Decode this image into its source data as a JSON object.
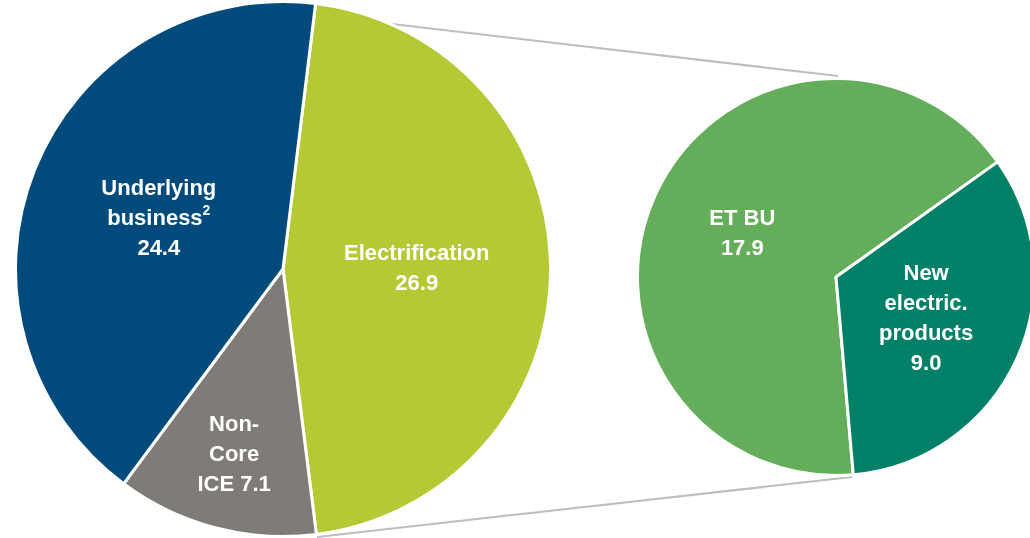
{
  "chart_data": [
    {
      "type": "pie",
      "categories": [
        "Electrification",
        "Non-Core ICE",
        "Underlying business$^{2}$"
      ],
      "values": [
        26.9,
        7.1,
        24.4
      ],
      "colors": [
        "#b5c934",
        "#7f7c78",
        "#004b7c"
      ],
      "value_labels": [
        "26.9",
        "7.1",
        "24.4"
      ]
    },
    {
      "type": "pie",
      "categories": [
        "ET BU",
        "New electric. products"
      ],
      "values": [
        17.9,
        9.0
      ],
      "colors": [
        "#64ad5a",
        "#008066"
      ],
      "value_labels": [
        "17.9",
        "9.0"
      ]
    }
  ]
}
